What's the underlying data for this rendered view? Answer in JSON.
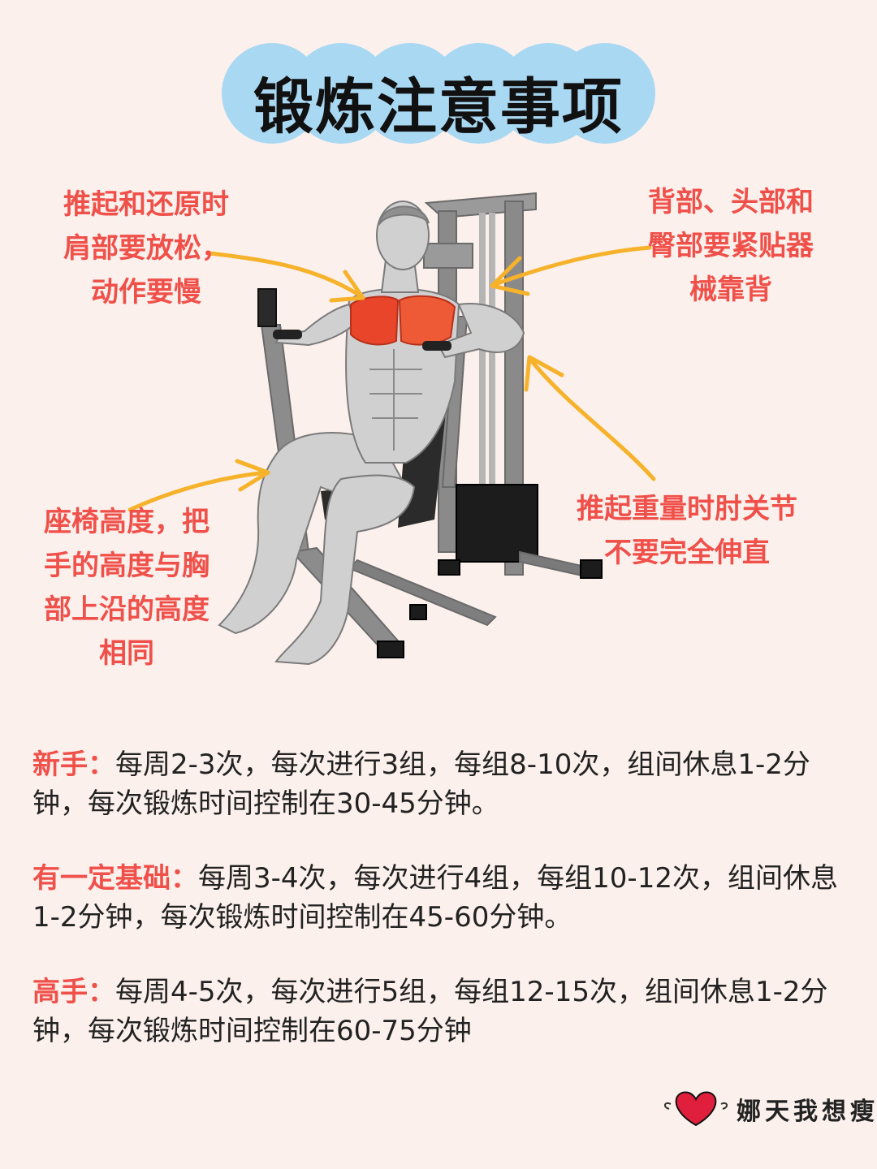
{
  "title": "锻炼注意事项",
  "notes": {
    "top_left": [
      "推起和还原时",
      "肩部要放松，",
      "动作要慢"
    ],
    "top_right": [
      "背部、头部和",
      "臀部要紧贴器",
      "械靠背"
    ],
    "bottom_left": [
      "座椅高度，把",
      "手的高度与胸",
      "部上沿的高度",
      "相同"
    ],
    "bottom_right": [
      "推起重量时肘关节",
      "不要完全伸直"
    ]
  },
  "levels": [
    {
      "label": "新手：",
      "text": "每周2-3次，每次进行3组，每组8-10次，组间休息1-2分钟，每次锻炼时间控制在30-45分钟。"
    },
    {
      "label": "有一定基础：",
      "text": "每周3-4次，每次进行4组，每组10-12次，组间休息1-2分钟，每次锻炼时间控制在45-60分钟。"
    },
    {
      "label": "高手：",
      "text": "每周4-5次，每次进行5组，每组12-15次，组间休息1-2分钟，每次锻炼时间控制在60-75分钟"
    }
  ],
  "brand": {
    "text": "娜天我想瘦",
    "icon": "heart-icon"
  },
  "colors": {
    "accent": "#f0504a",
    "bubble": "#a9d8f3",
    "arrow": "#f7b22b",
    "muscle": "#e8452a"
  }
}
